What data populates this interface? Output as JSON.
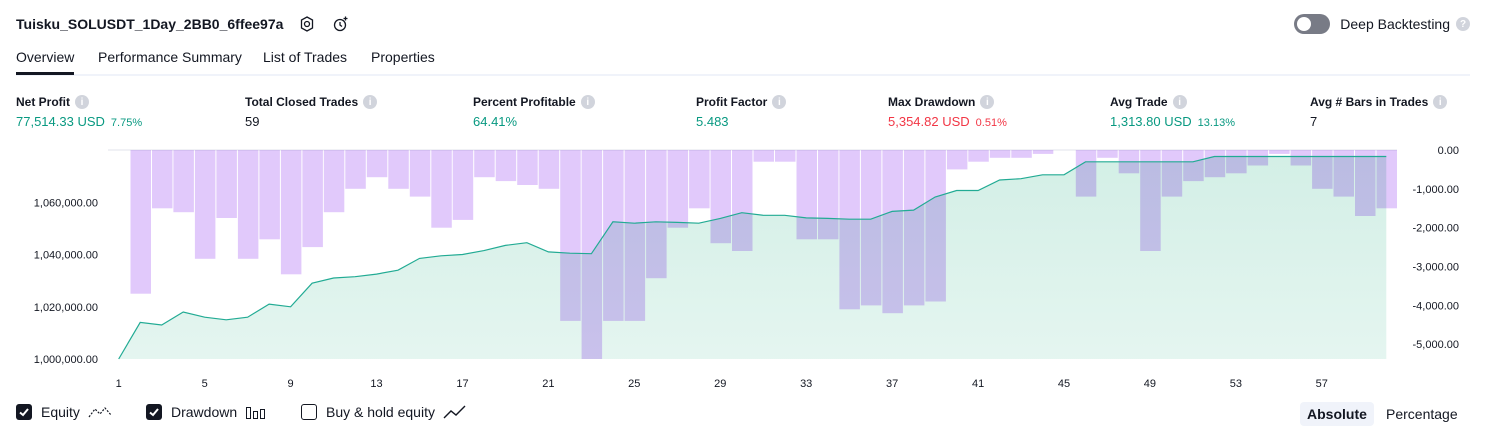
{
  "header": {
    "title": "Tuisku_SOLUSDT_1Day_2BB0_6ffee97a",
    "icons": [
      "settings-icon",
      "add-alert-icon"
    ]
  },
  "deep_backtesting": {
    "label": "Deep Backtesting",
    "enabled": false,
    "help": "?"
  },
  "tabs": [
    {
      "label": "Overview",
      "active": true
    },
    {
      "label": "Performance Summary",
      "active": false
    },
    {
      "label": "List of Trades",
      "active": false
    },
    {
      "label": "Properties",
      "active": false
    }
  ],
  "metrics": [
    {
      "label": "Net Profit",
      "value": "77,514.33 USD",
      "pct": "7.75%",
      "tone": "pos"
    },
    {
      "label": "Total Closed Trades",
      "value": "59",
      "pct": "",
      "tone": "neutral"
    },
    {
      "label": "Percent Profitable",
      "value": "64.41%",
      "pct": "",
      "tone": "pos"
    },
    {
      "label": "Profit Factor",
      "value": "5.483",
      "pct": "",
      "tone": "pos"
    },
    {
      "label": "Max Drawdown",
      "value": "5,354.82 USD",
      "pct": "0.51%",
      "tone": "neg"
    },
    {
      "label": "Avg Trade",
      "value": "1,313.80 USD",
      "pct": "13.13%",
      "tone": "pos"
    },
    {
      "label": "Avg # Bars in Trades",
      "value": "7",
      "pct": "",
      "tone": "neutral"
    }
  ],
  "info_glyph": "i",
  "colors": {
    "equity_line": "#22ab94",
    "equity_fill": "#d3efe6",
    "drawdown_bar": "#e1c9fb",
    "overlap_bar": "#b7b8e8",
    "positive": "#089981",
    "negative": "#f23645"
  },
  "chart_data": {
    "type": "area",
    "x": [
      1,
      2,
      3,
      4,
      5,
      6,
      7,
      8,
      9,
      10,
      11,
      12,
      13,
      14,
      15,
      16,
      17,
      18,
      19,
      20,
      21,
      22,
      23,
      24,
      25,
      26,
      27,
      28,
      29,
      30,
      31,
      32,
      33,
      34,
      35,
      36,
      37,
      38,
      39,
      40,
      41,
      42,
      43,
      44,
      45,
      46,
      47,
      48,
      49,
      50,
      51,
      52,
      53,
      54,
      55,
      56,
      57,
      58,
      59,
      60
    ],
    "x_ticks": [
      "1",
      "5",
      "9",
      "13",
      "17",
      "21",
      "25",
      "29",
      "33",
      "37",
      "41",
      "45",
      "49",
      "53",
      "57"
    ],
    "x_tick_values": [
      1,
      5,
      9,
      13,
      17,
      21,
      25,
      29,
      33,
      37,
      41,
      45,
      49,
      53,
      57
    ],
    "series": [
      {
        "name": "Equity",
        "axis": "left",
        "values": [
          1000000,
          1014000,
          1013000,
          1018000,
          1016000,
          1015000,
          1016000,
          1021000,
          1020000,
          1029000,
          1031000,
          1031500,
          1032500,
          1034000,
          1038500,
          1039500,
          1040000,
          1041500,
          1043500,
          1044500,
          1041000,
          1040500,
          1040300,
          1052500,
          1052000,
          1052500,
          1052300,
          1052000,
          1053800,
          1056000,
          1055000,
          1055000,
          1054000,
          1053800,
          1053500,
          1053500,
          1056500,
          1057000,
          1062000,
          1064500,
          1064500,
          1068500,
          1069000,
          1070500,
          1070500,
          1075500,
          1075500,
          1075500,
          1075500,
          1075500,
          1075500,
          1077500,
          1077500,
          1077500,
          1077500,
          1077500,
          1077500,
          1077500,
          1077500,
          1077500
        ]
      },
      {
        "name": "Drawdown",
        "axis": "right",
        "values": [
          0,
          -3700,
          -1500,
          -1600,
          -2800,
          -1750,
          -2800,
          -2300,
          -3200,
          -2500,
          -1600,
          -1000,
          -700,
          -1000,
          -1200,
          -2000,
          -1800,
          -700,
          -800,
          -900,
          -1000,
          -4400,
          -5380,
          -4400,
          -4400,
          -3300,
          -2000,
          -1500,
          -2400,
          -2600,
          -300,
          -300,
          -2300,
          -2300,
          -4100,
          -4000,
          -4200,
          -4000,
          -3900,
          -500,
          -300,
          -200,
          -200,
          -100,
          0,
          -1200,
          -200,
          -600,
          -2600,
          -1200,
          -800,
          -700,
          -600,
          -400,
          -100,
          -400,
          -1000,
          -1200,
          -1700,
          -1500
        ],
        "bar_colors_legend": "purple = drawdown, violet = drawdown overlapping equity area"
      }
    ],
    "ylim_left": [
      1000000,
      1080000
    ],
    "y_ticks_left": [
      "1,000,000.00",
      "1,020,000.00",
      "1,040,000.00",
      "1,060,000.00"
    ],
    "y_tick_values_left": [
      1000000,
      1020000,
      1040000,
      1060000
    ],
    "ylim_right": [
      -5380,
      0
    ],
    "y_ticks_right": [
      "0.00",
      "-1,000.00",
      "-2,000.00",
      "-3,000.00",
      "-4,000.00",
      "-5,000.00"
    ],
    "y_tick_values_right": [
      0,
      -1000,
      -2000,
      -3000,
      -4000,
      -5000
    ],
    "legend_placement": "bottom-left"
  },
  "legend": [
    {
      "label": "Equity",
      "checked": true,
      "icon": "equity-line-icon"
    },
    {
      "label": "Drawdown",
      "checked": true,
      "icon": "drawdown-bars-icon"
    },
    {
      "label": "Buy & hold equity",
      "checked": false,
      "icon": "buy-hold-line-icon"
    }
  ],
  "mode": {
    "absolute": "Absolute",
    "percentage": "Percentage",
    "selected": "absolute"
  }
}
